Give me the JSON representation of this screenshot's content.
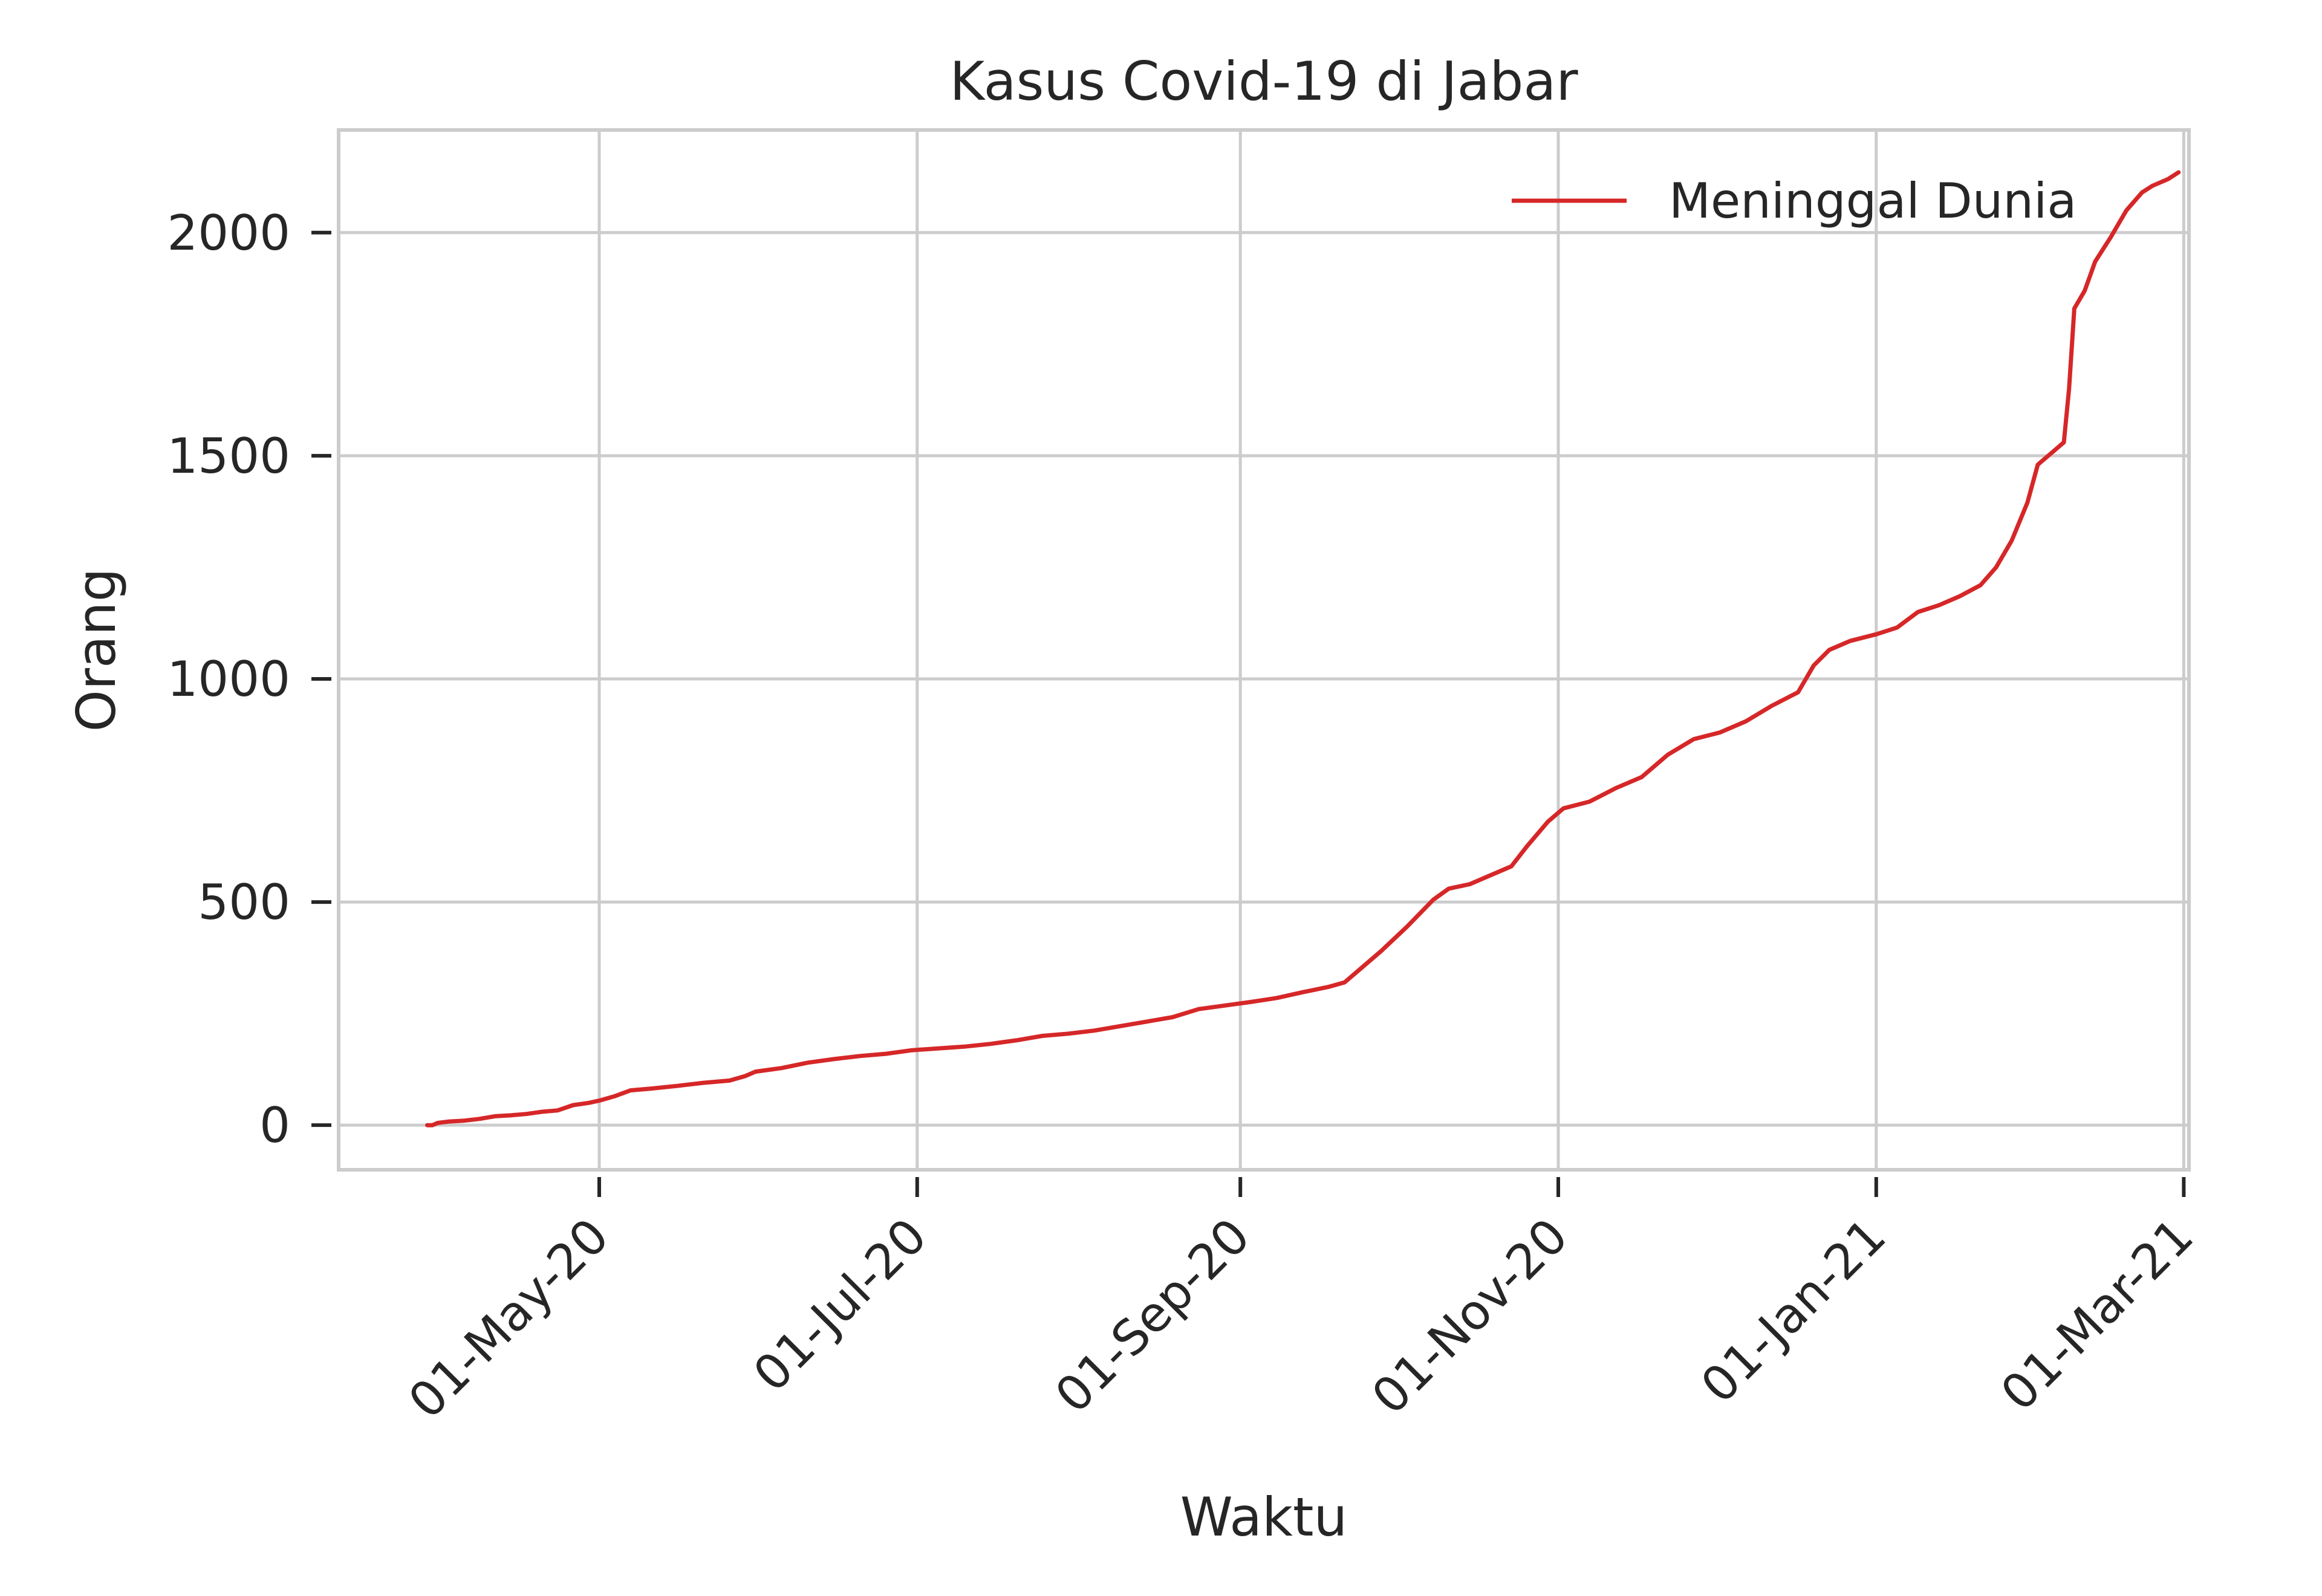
{
  "chart_data": {
    "type": "line",
    "title": "Kasus Covid-19 di Jabar",
    "xlabel": "Waktu",
    "ylabel": "Orang",
    "x_ticks": [
      {
        "label": "01-May-20",
        "day": 30
      },
      {
        "label": "01-Jul-20",
        "day": 91
      },
      {
        "label": "01-Sep-20",
        "day": 153
      },
      {
        "label": "01-Nov-20",
        "day": 214
      },
      {
        "label": "01-Jan-21",
        "day": 275
      },
      {
        "label": "01-Mar-21",
        "day": 334
      }
    ],
    "y_ticks": [
      0,
      500,
      1000,
      1500,
      2000
    ],
    "ylim": [
      -100,
      2230
    ],
    "xlim": [
      -20,
      335
    ],
    "x_axis_start_date": "2020-04-01",
    "legend": "top-right",
    "grid": true,
    "series": [
      {
        "name": "Meninggal Dunia",
        "color": "#d62728",
        "points": [
          [
            -3,
            0
          ],
          [
            -2,
            0
          ],
          [
            -1,
            5
          ],
          [
            1,
            8
          ],
          [
            4,
            10
          ],
          [
            7,
            14
          ],
          [
            10,
            20
          ],
          [
            13,
            22
          ],
          [
            16,
            25
          ],
          [
            19,
            30
          ],
          [
            22,
            33
          ],
          [
            25,
            45
          ],
          [
            28,
            50
          ],
          [
            30,
            55
          ],
          [
            33,
            65
          ],
          [
            36,
            78
          ],
          [
            40,
            82
          ],
          [
            45,
            88
          ],
          [
            50,
            95
          ],
          [
            55,
            100
          ],
          [
            58,
            110
          ],
          [
            60,
            120
          ],
          [
            65,
            128
          ],
          [
            70,
            140
          ],
          [
            75,
            148
          ],
          [
            80,
            155
          ],
          [
            85,
            160
          ],
          [
            90,
            168
          ],
          [
            95,
            172
          ],
          [
            100,
            176
          ],
          [
            105,
            182
          ],
          [
            110,
            190
          ],
          [
            115,
            200
          ],
          [
            120,
            205
          ],
          [
            125,
            212
          ],
          [
            130,
            222
          ],
          [
            135,
            232
          ],
          [
            140,
            242
          ],
          [
            145,
            260
          ],
          [
            150,
            268
          ],
          [
            155,
            276
          ],
          [
            160,
            285
          ],
          [
            165,
            298
          ],
          [
            170,
            310
          ],
          [
            173,
            320
          ],
          [
            176,
            350
          ],
          [
            180,
            390
          ],
          [
            185,
            445
          ],
          [
            190,
            505
          ],
          [
            193,
            530
          ],
          [
            197,
            540
          ],
          [
            200,
            555
          ],
          [
            205,
            580
          ],
          [
            208,
            625
          ],
          [
            212,
            680
          ],
          [
            215,
            710
          ],
          [
            220,
            725
          ],
          [
            225,
            755
          ],
          [
            230,
            780
          ],
          [
            235,
            830
          ],
          [
            240,
            865
          ],
          [
            245,
            880
          ],
          [
            250,
            905
          ],
          [
            255,
            940
          ],
          [
            260,
            970
          ],
          [
            263,
            1030
          ],
          [
            266,
            1065
          ],
          [
            270,
            1085
          ],
          [
            275,
            1100
          ],
          [
            279,
            1115
          ],
          [
            283,
            1150
          ],
          [
            287,
            1165
          ],
          [
            291,
            1185
          ],
          [
            295,
            1210
          ],
          [
            298,
            1250
          ],
          [
            301,
            1310
          ],
          [
            304,
            1395
          ],
          [
            306,
            1480
          ],
          [
            309,
            1510
          ],
          [
            311,
            1530
          ],
          [
            312,
            1650
          ],
          [
            313,
            1830
          ],
          [
            315,
            1870
          ],
          [
            317,
            1935
          ],
          [
            320,
            1990
          ],
          [
            323,
            2050
          ],
          [
            326,
            2090
          ],
          [
            328,
            2105
          ],
          [
            331,
            2120
          ],
          [
            333,
            2135
          ]
        ]
      }
    ]
  }
}
